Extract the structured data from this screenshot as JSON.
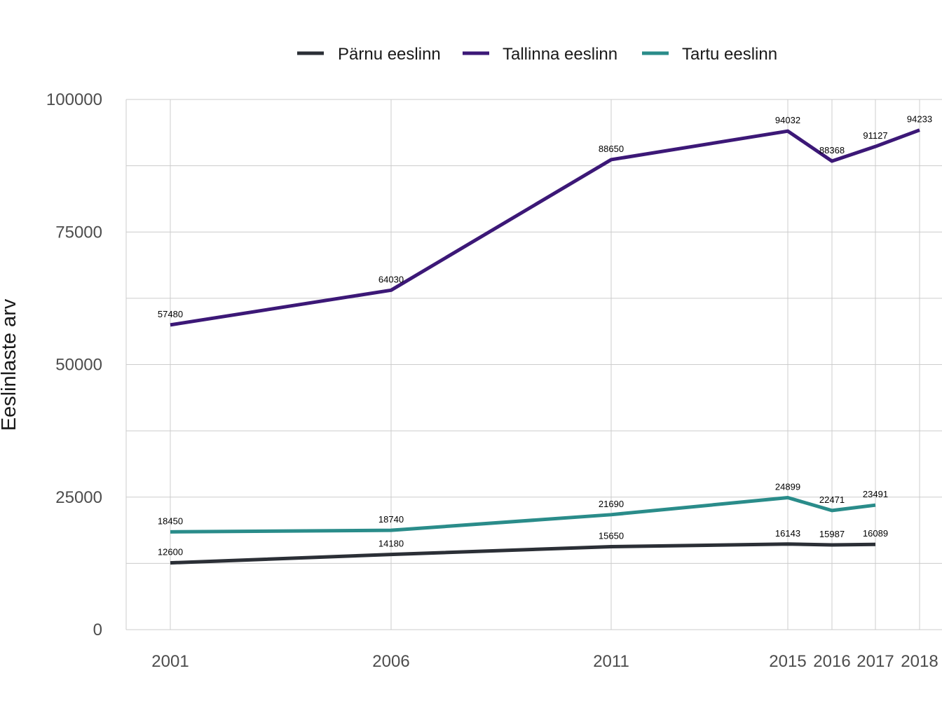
{
  "chart_data": {
    "type": "line",
    "title": "",
    "xlabel": "",
    "ylabel": "Eeslinlaste arv",
    "x": [
      2001,
      2006,
      2011,
      2015,
      2016,
      2017,
      2018
    ],
    "x_tick_labels": [
      "2001",
      "2006",
      "2011",
      "2015",
      "2016",
      "2017",
      "2018"
    ],
    "ylim": [
      0,
      100000
    ],
    "y_ticks": [
      0,
      25000,
      50000,
      75000,
      100000
    ],
    "y_tick_labels": [
      "0",
      "25000",
      "50000",
      "75000",
      "100000"
    ],
    "grid": true,
    "legend_position": "top",
    "series": [
      {
        "name": "Pärnu eeslinn",
        "color": "#2b2f36",
        "points": [
          {
            "x": 2001,
            "y": 12600,
            "label": "12600"
          },
          {
            "x": 2006,
            "y": 14180,
            "label": "14180"
          },
          {
            "x": 2011,
            "y": 15650,
            "label": "15650"
          },
          {
            "x": 2015,
            "y": 16143,
            "label": "16143"
          },
          {
            "x": 2016,
            "y": 15987,
            "label": "15987"
          },
          {
            "x": 2017,
            "y": 16089,
            "label": "16089"
          }
        ]
      },
      {
        "name": "Tallinna eeslinn",
        "color": "#3c1877",
        "points": [
          {
            "x": 2001,
            "y": 57480,
            "label": "57480"
          },
          {
            "x": 2006,
            "y": 64030,
            "label": "64030"
          },
          {
            "x": 2011,
            "y": 88650,
            "label": "88650"
          },
          {
            "x": 2015,
            "y": 94032,
            "label": "94032"
          },
          {
            "x": 2016,
            "y": 88368,
            "label": "88368"
          },
          {
            "x": 2017,
            "y": 91127,
            "label": "91127"
          },
          {
            "x": 2018,
            "y": 94233,
            "label": "94233"
          }
        ]
      },
      {
        "name": "Tartu eeslinn",
        "color": "#2a8c8a",
        "points": [
          {
            "x": 2001,
            "y": 18450,
            "label": "18450"
          },
          {
            "x": 2006,
            "y": 18740,
            "label": "18740"
          },
          {
            "x": 2011,
            "y": 21690,
            "label": "21690"
          },
          {
            "x": 2015,
            "y": 24899,
            "label": "24899"
          },
          {
            "x": 2016,
            "y": 22471,
            "label": "22471"
          },
          {
            "x": 2017,
            "y": 23491,
            "label": "23491"
          }
        ]
      }
    ]
  }
}
